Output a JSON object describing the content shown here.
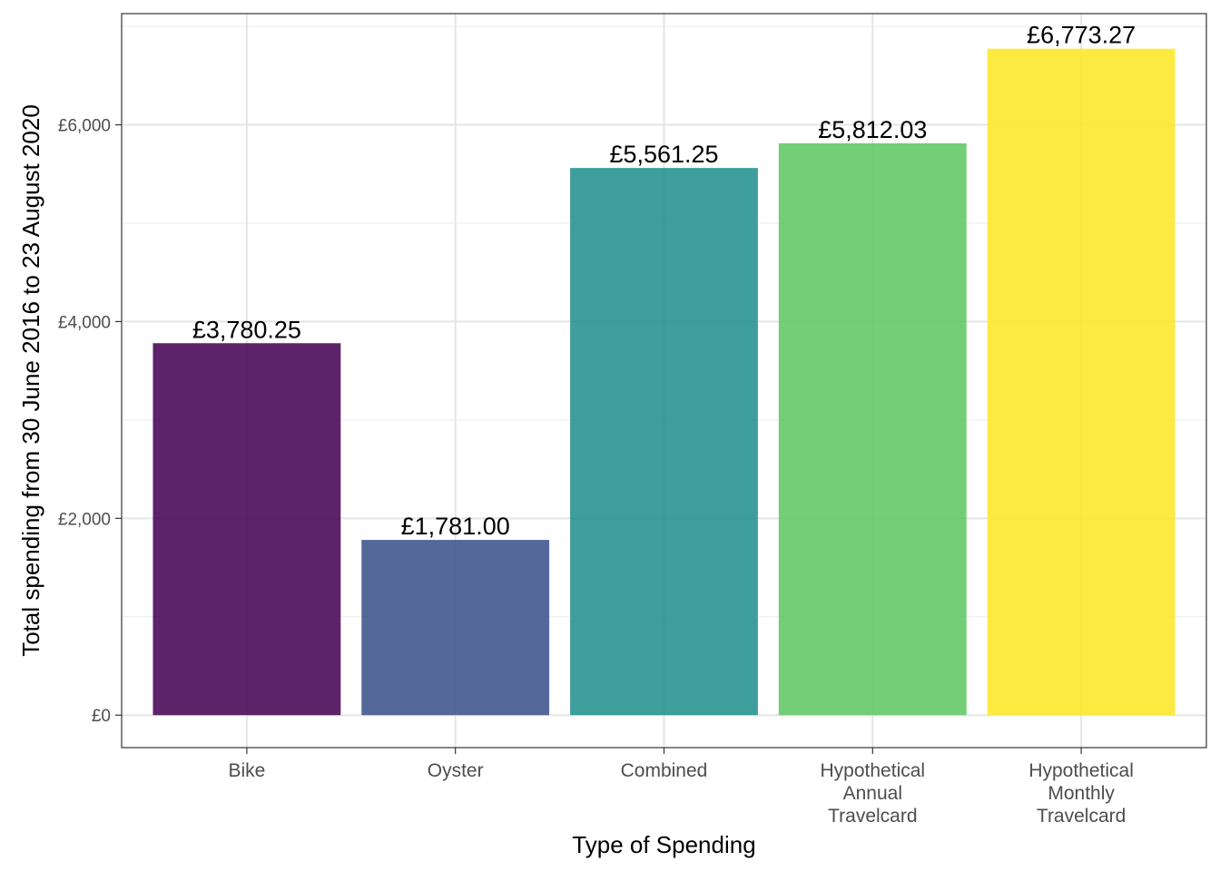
{
  "chart_data": {
    "type": "bar",
    "title": "",
    "xlabel": "Type of Spending",
    "ylabel": "Total spending from 30 June 2016 to 23 August 2020",
    "ylim": [
      -330,
      7130
    ],
    "grid": true,
    "legend": "none",
    "categories": [
      {
        "label_lines": [
          "Bike"
        ]
      },
      {
        "label_lines": [
          "Oyster"
        ]
      },
      {
        "label_lines": [
          "Combined"
        ]
      },
      {
        "label_lines": [
          "Hypothetical",
          "Annual",
          "Travelcard"
        ]
      },
      {
        "label_lines": [
          "Hypothetical",
          "Monthly",
          "Travelcard"
        ]
      }
    ],
    "values": [
      3780.25,
      1781.0,
      5561.25,
      5812.03,
      6773.27
    ],
    "value_labels": [
      "£3,780.25",
      "£1,781.00",
      "£5,561.25",
      "£5,812.03",
      "£6,773.27"
    ],
    "colors": [
      "#440154",
      "#3b528b",
      "#21908c",
      "#5dc863",
      "#fde725"
    ],
    "bar_opacity": 0.87,
    "y_ticks": [
      {
        "value": 0,
        "label": "£0"
      },
      {
        "value": 2000,
        "label": "£2,000"
      },
      {
        "value": 4000,
        "label": "£4,000"
      },
      {
        "value": 6000,
        "label": "£6,000"
      }
    ],
    "y_minor_ticks": [
      1000,
      3000,
      5000,
      7000
    ]
  }
}
